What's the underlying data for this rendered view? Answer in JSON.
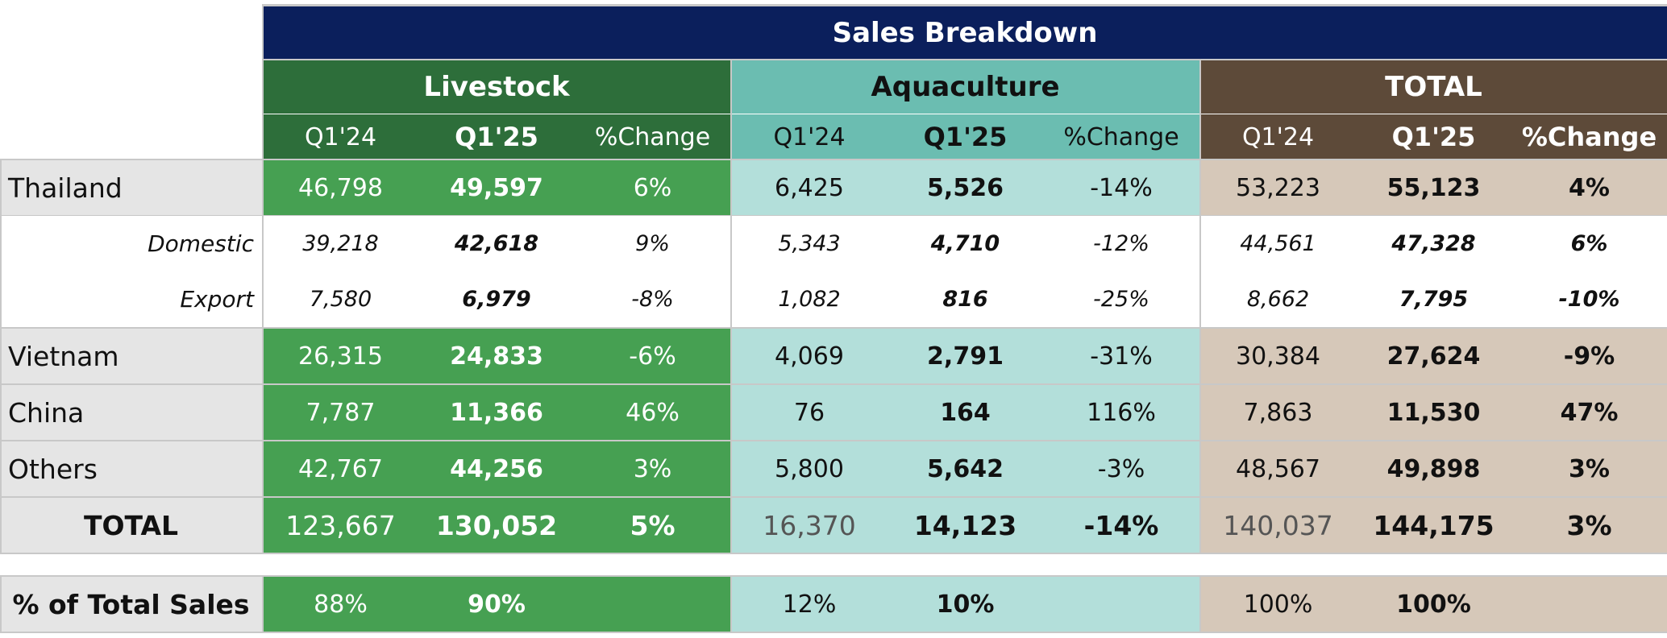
{
  "title": "Sales Breakdown",
  "groups": {
    "livestock": "Livestock",
    "aquaculture": "Aquaculture",
    "total": "TOTAL"
  },
  "subheaders": {
    "q1_24": "Q1'24",
    "q1_25": "Q1'25",
    "change": "%Change"
  },
  "rows": [
    {
      "label": "Thailand",
      "live": [
        "46,798",
        "49,597",
        "6%"
      ],
      "aqua": [
        "6,425",
        "5,526",
        "-14%"
      ],
      "total": [
        "53,223",
        "55,123",
        "4%"
      ]
    },
    {
      "label": "Domestic",
      "live": [
        "39,218",
        "42,618",
        "9%"
      ],
      "aqua": [
        "5,343",
        "4,710",
        "-12%"
      ],
      "total": [
        "44,561",
        "47,328",
        "6%"
      ]
    },
    {
      "label": "Export",
      "live": [
        "7,580",
        "6,979",
        "-8%"
      ],
      "aqua": [
        "1,082",
        "816",
        "-25%"
      ],
      "total": [
        "8,662",
        "7,795",
        "-10%"
      ]
    },
    {
      "label": "Vietnam",
      "live": [
        "26,315",
        "24,833",
        "-6%"
      ],
      "aqua": [
        "4,069",
        "2,791",
        "-31%"
      ],
      "total": [
        "30,384",
        "27,624",
        "-9%"
      ]
    },
    {
      "label": "China",
      "live": [
        "7,787",
        "11,366",
        "46%"
      ],
      "aqua": [
        "76",
        "164",
        "116%"
      ],
      "total": [
        "7,863",
        "11,530",
        "47%"
      ]
    },
    {
      "label": "Others",
      "live": [
        "42,767",
        "44,256",
        "3%"
      ],
      "aqua": [
        "5,800",
        "5,642",
        "-3%"
      ],
      "total": [
        "48,567",
        "49,898",
        "3%"
      ]
    },
    {
      "label": "TOTAL",
      "live": [
        "123,667",
        "130,052",
        "5%"
      ],
      "aqua": [
        "16,370",
        "14,123",
        "-14%"
      ],
      "total": [
        "140,037",
        "144,175",
        "3%"
      ]
    }
  ],
  "share": {
    "label": "% of Total Sales",
    "live": [
      "88%",
      "90%"
    ],
    "aqua": [
      "12%",
      "10%"
    ],
    "total": [
      "100%",
      "100%"
    ]
  }
}
